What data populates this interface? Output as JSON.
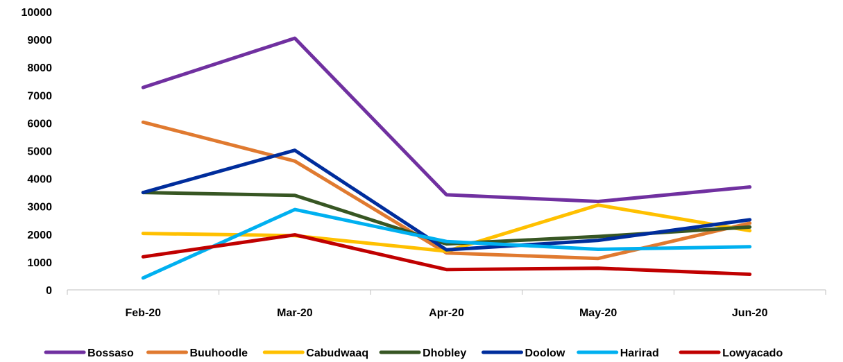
{
  "chart_data": {
    "type": "line",
    "title": "",
    "xlabel": "",
    "ylabel": "",
    "categories": [
      "Feb-20",
      "Mar-20",
      "Apr-20",
      "May-20",
      "Jun-20"
    ],
    "ylim": [
      0,
      10000
    ],
    "yticks": [
      0,
      1000,
      2000,
      3000,
      4000,
      5000,
      6000,
      7000,
      8000,
      9000,
      10000
    ],
    "grid": false,
    "legend_position": "bottom",
    "series": [
      {
        "name": "Bossaso",
        "color": "#7030A0",
        "values": [
          7280,
          9050,
          3420,
          3180,
          3700
        ]
      },
      {
        "name": "Buuhoodle",
        "color": "#E07A30",
        "values": [
          6030,
          4630,
          1330,
          1130,
          2400
        ]
      },
      {
        "name": "Cabudwaaq",
        "color": "#FFC000",
        "values": [
          2030,
          1950,
          1390,
          3050,
          2130
        ]
      },
      {
        "name": "Dhobley",
        "color": "#375623",
        "values": [
          3500,
          3400,
          1650,
          1920,
          2260
        ]
      },
      {
        "name": "Doolow",
        "color": "#002D9C",
        "values": [
          3500,
          5020,
          1440,
          1780,
          2520
        ]
      },
      {
        "name": "Harirad",
        "color": "#00B0F0",
        "values": [
          430,
          2890,
          1740,
          1460,
          1550
        ]
      },
      {
        "name": "Lowyacado",
        "color": "#C00000",
        "values": [
          1190,
          1980,
          730,
          780,
          560
        ]
      }
    ]
  }
}
